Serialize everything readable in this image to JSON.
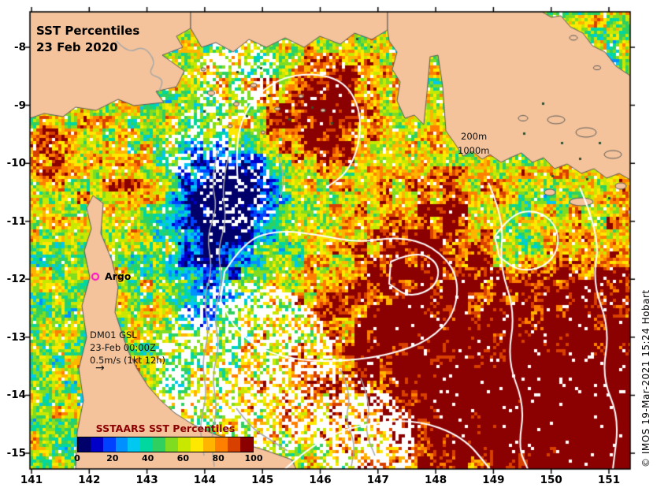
{
  "title": {
    "line1": "SST Percentiles",
    "line2": "23 Feb 2020"
  },
  "map_labels": {
    "depth_200": "200m",
    "depth_1000": "1000m",
    "argo": "Argo",
    "drifter_line1": "DM01 GSL",
    "drifter_line2": "23-Feb 00:00Z",
    "drifter_line3": "0.5m/s (1kt 12h)",
    "drifter_arrow": "→"
  },
  "colorbar": {
    "title": "SSTAARS SST Percentiles",
    "tick_labels": [
      "0",
      "20",
      "40",
      "60",
      "80",
      "100"
    ],
    "palette": [
      "#00006b",
      "#0000c8",
      "#0040ff",
      "#0090ff",
      "#00c8f0",
      "#00d8a0",
      "#30d060",
      "#80dc20",
      "#c8e800",
      "#ffe800",
      "#ffb400",
      "#ff8000",
      "#d84000",
      "#8b0000"
    ]
  },
  "axes": {
    "x_tick_labels": [
      "141",
      "142",
      "143",
      "144",
      "145",
      "146",
      "147",
      "148",
      "149",
      "150",
      "151"
    ],
    "y_tick_labels": [
      "-8",
      "-9",
      "-10",
      "-11",
      "-12",
      "-13",
      "-14",
      "-15"
    ]
  },
  "credit": "© IMOS 19-Mar-2021 15:24 Hobart",
  "colors": {
    "land": "#f4c39b",
    "coastline": "#5a5a5a",
    "inner_contour_gray": "#a8a8a8",
    "sst_contour_white": "#ffffff",
    "argo_marker": "#ff00cc",
    "colorbar_title": "#8b0000"
  }
}
